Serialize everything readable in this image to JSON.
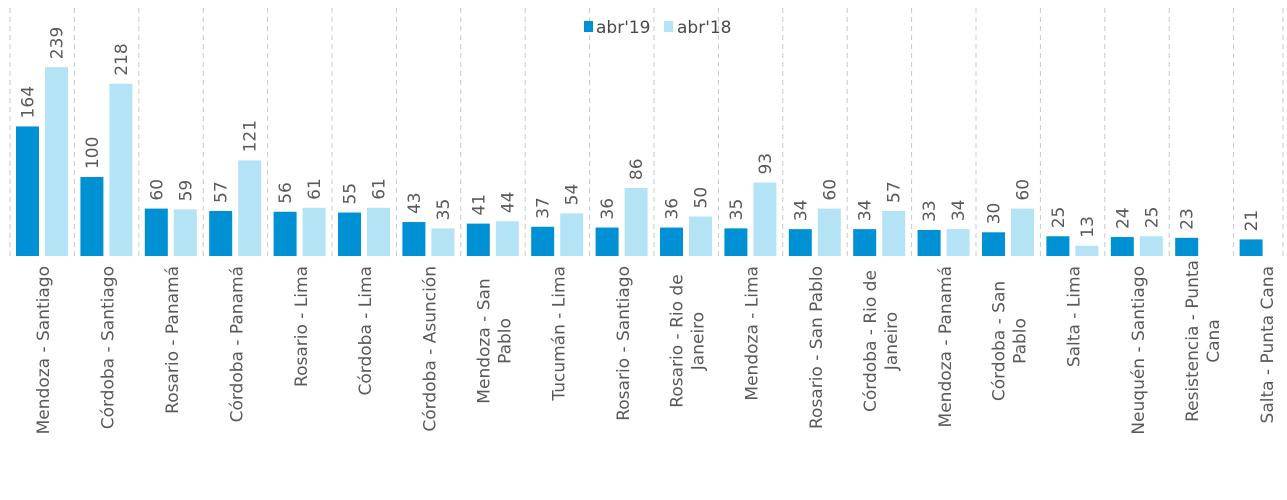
{
  "chart_data": {
    "type": "bar",
    "title": "",
    "xlabel": "",
    "ylabel": "",
    "grid": "vertical dashed separators between categories",
    "legend_position": "top-center",
    "colors": {
      "abr19": "#0091d5",
      "abr18": "#b3e3f4",
      "text": "#595959",
      "grid": "#c8c8c8"
    },
    "series": [
      {
        "name": "abr'19",
        "values": [
          164,
          100,
          60,
          57,
          56,
          55,
          43,
          41,
          37,
          36,
          36,
          35,
          34,
          34,
          33,
          30,
          25,
          24,
          23,
          21
        ]
      },
      {
        "name": "abr'18",
        "values": [
          239,
          218,
          59,
          121,
          61,
          61,
          35,
          44,
          54,
          86,
          50,
          93,
          60,
          57,
          34,
          60,
          13,
          25,
          null,
          null
        ]
      }
    ],
    "categories": [
      [
        "Mendoza - Santiago"
      ],
      [
        "Córdoba - Santiago"
      ],
      [
        "Rosario - Panamá"
      ],
      [
        "Córdoba - Panamá"
      ],
      [
        "Rosario - Lima"
      ],
      [
        "Córdoba - Lima"
      ],
      [
        "Córdoba - Asunción"
      ],
      [
        "Mendoza - San",
        "Pablo"
      ],
      [
        "Tucumán - Lima"
      ],
      [
        "Rosario - Santiago"
      ],
      [
        "Rosario - Rio de",
        "Janeiro"
      ],
      [
        "Mendoza - Lima"
      ],
      [
        "Rosario - San Pablo"
      ],
      [
        "Córdoba - Rio de",
        "Janeiro"
      ],
      [
        "Mendoza - Panamá"
      ],
      [
        "Córdoba - San",
        "Pablo"
      ],
      [
        "Salta - Lima"
      ],
      [
        "Neuquén - Santiago"
      ],
      [
        "Resistencia - Punta",
        "Cana"
      ],
      [
        "Salta - Punta Cana"
      ]
    ],
    "data_labels": [
      [
        "164",
        "239"
      ],
      [
        "100",
        "218"
      ],
      [
        "60",
        "59"
      ],
      [
        "57",
        "121"
      ],
      [
        "56",
        "61"
      ],
      [
        "55",
        "61"
      ],
      [
        "43",
        "35"
      ],
      [
        "41",
        "44"
      ],
      [
        "37",
        "54"
      ],
      [
        "36",
        "86"
      ],
      [
        "36",
        "50"
      ],
      [
        "35",
        "93"
      ],
      [
        "34",
        "60"
      ],
      [
        "34",
        "57"
      ],
      [
        "33",
        "34"
      ],
      [
        "30",
        "60"
      ],
      [
        "25",
        "13"
      ],
      [
        "24",
        "25"
      ],
      [
        "23",
        null
      ],
      [
        "21",
        null
      ]
    ],
    "ylim": [
      0,
      250
    ]
  }
}
